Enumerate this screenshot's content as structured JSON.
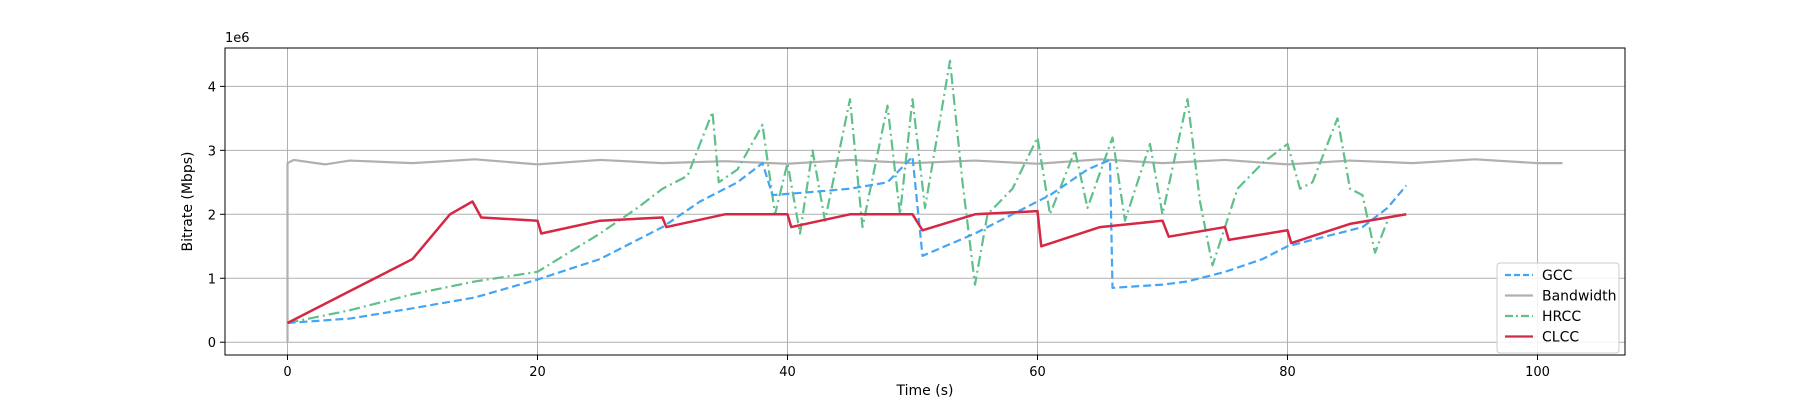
{
  "chart_data": {
    "type": "line",
    "title": "",
    "xlabel": "Time (s)",
    "ylabel": "Bitrate (Mbps)",
    "y_offset_label": "1e6",
    "xlim": [
      -5,
      107
    ],
    "ylim": [
      -200000,
      4600000
    ],
    "x_ticks": [
      0,
      20,
      40,
      60,
      80,
      100
    ],
    "y_ticks": [
      0,
      1000000,
      2000000,
      3000000,
      4000000
    ],
    "x_tick_labels": [
      "0",
      "20",
      "40",
      "60",
      "80",
      "100"
    ],
    "y_tick_labels": [
      "0",
      "1",
      "2",
      "3",
      "4"
    ],
    "grid": true,
    "legend_position": "lower-right",
    "series": [
      {
        "name": "GCC",
        "color": "#42a5f5",
        "style": "dashed",
        "points": [
          [
            0,
            300000
          ],
          [
            5,
            370000
          ],
          [
            10,
            530000
          ],
          [
            15,
            700000
          ],
          [
            20,
            980000
          ],
          [
            25,
            1300000
          ],
          [
            30,
            1800000
          ],
          [
            33,
            2200000
          ],
          [
            36,
            2500000
          ],
          [
            38,
            2800000
          ],
          [
            38.8,
            2300000
          ],
          [
            42,
            2350000
          ],
          [
            45,
            2400000
          ],
          [
            48,
            2500000
          ],
          [
            50,
            2900000
          ],
          [
            50.8,
            1350000
          ],
          [
            52,
            1450000
          ],
          [
            55,
            1700000
          ],
          [
            58,
            2000000
          ],
          [
            61,
            2300000
          ],
          [
            64,
            2700000
          ],
          [
            65.8,
            2850000
          ],
          [
            66,
            850000
          ],
          [
            70,
            900000
          ],
          [
            72,
            950000
          ],
          [
            75,
            1100000
          ],
          [
            78,
            1300000
          ],
          [
            80,
            1500000
          ],
          [
            83,
            1650000
          ],
          [
            86,
            1800000
          ],
          [
            88,
            2100000
          ],
          [
            89.5,
            2450000
          ]
        ]
      },
      {
        "name": "Bandwidth",
        "color": "#b0b0b0",
        "style": "solid",
        "points": [
          [
            0,
            0
          ],
          [
            0,
            2800000
          ],
          [
            0.5,
            2850000
          ],
          [
            3,
            2780000
          ],
          [
            5,
            2840000
          ],
          [
            10,
            2800000
          ],
          [
            15,
            2860000
          ],
          [
            20,
            2780000
          ],
          [
            25,
            2850000
          ],
          [
            30,
            2800000
          ],
          [
            35,
            2830000
          ],
          [
            40,
            2790000
          ],
          [
            45,
            2850000
          ],
          [
            50,
            2800000
          ],
          [
            55,
            2840000
          ],
          [
            60,
            2790000
          ],
          [
            65,
            2860000
          ],
          [
            70,
            2800000
          ],
          [
            75,
            2850000
          ],
          [
            80,
            2780000
          ],
          [
            85,
            2840000
          ],
          [
            90,
            2800000
          ],
          [
            95,
            2860000
          ],
          [
            100,
            2800000
          ],
          [
            102,
            2800000
          ]
        ]
      },
      {
        "name": "HRCC",
        "color": "#5fc08a",
        "style": "dashdot",
        "points": [
          [
            0,
            300000
          ],
          [
            5,
            500000
          ],
          [
            10,
            750000
          ],
          [
            15,
            950000
          ],
          [
            20,
            1100000
          ],
          [
            25,
            1700000
          ],
          [
            28,
            2100000
          ],
          [
            30,
            2400000
          ],
          [
            32,
            2600000
          ],
          [
            34,
            3600000
          ],
          [
            34.5,
            2500000
          ],
          [
            36,
            2700000
          ],
          [
            38,
            3400000
          ],
          [
            39,
            2000000
          ],
          [
            40,
            2800000
          ],
          [
            41,
            1700000
          ],
          [
            42,
            3000000
          ],
          [
            43,
            1900000
          ],
          [
            45,
            3800000
          ],
          [
            46,
            1800000
          ],
          [
            48,
            3700000
          ],
          [
            49,
            2000000
          ],
          [
            50,
            3800000
          ],
          [
            51,
            2100000
          ],
          [
            53,
            4400000
          ],
          [
            54,
            2500000
          ],
          [
            55,
            900000
          ],
          [
            56,
            2000000
          ],
          [
            58,
            2400000
          ],
          [
            60,
            3200000
          ],
          [
            61,
            2000000
          ],
          [
            63,
            3000000
          ],
          [
            64,
            2100000
          ],
          [
            66,
            3200000
          ],
          [
            67,
            1900000
          ],
          [
            69,
            3100000
          ],
          [
            70,
            2000000
          ],
          [
            72,
            3800000
          ],
          [
            73,
            2200000
          ],
          [
            74,
            1200000
          ],
          [
            76,
            2400000
          ],
          [
            78,
            2800000
          ],
          [
            80,
            3100000
          ],
          [
            81,
            2400000
          ],
          [
            82,
            2500000
          ],
          [
            84,
            3500000
          ],
          [
            85,
            2400000
          ],
          [
            86,
            2300000
          ],
          [
            87,
            1400000
          ],
          [
            88,
            1900000
          ]
        ]
      },
      {
        "name": "CLCC",
        "color": "#d62745",
        "style": "solid",
        "points": [
          [
            0,
            300000
          ],
          [
            5,
            800000
          ],
          [
            10,
            1300000
          ],
          [
            13,
            2000000
          ],
          [
            14.8,
            2200000
          ],
          [
            15.5,
            1950000
          ],
          [
            20,
            1900000
          ],
          [
            20.3,
            1700000
          ],
          [
            25,
            1900000
          ],
          [
            30,
            1950000
          ],
          [
            30.3,
            1800000
          ],
          [
            35,
            2000000
          ],
          [
            40,
            2000000
          ],
          [
            40.3,
            1800000
          ],
          [
            45,
            2000000
          ],
          [
            50,
            2000000
          ],
          [
            50.8,
            1750000
          ],
          [
            55,
            2000000
          ],
          [
            60,
            2050000
          ],
          [
            60.3,
            1500000
          ],
          [
            65,
            1800000
          ],
          [
            70,
            1900000
          ],
          [
            70.5,
            1650000
          ],
          [
            75,
            1800000
          ],
          [
            75.3,
            1600000
          ],
          [
            80,
            1750000
          ],
          [
            80.3,
            1550000
          ],
          [
            85,
            1850000
          ],
          [
            89.5,
            2000000
          ]
        ]
      }
    ]
  }
}
